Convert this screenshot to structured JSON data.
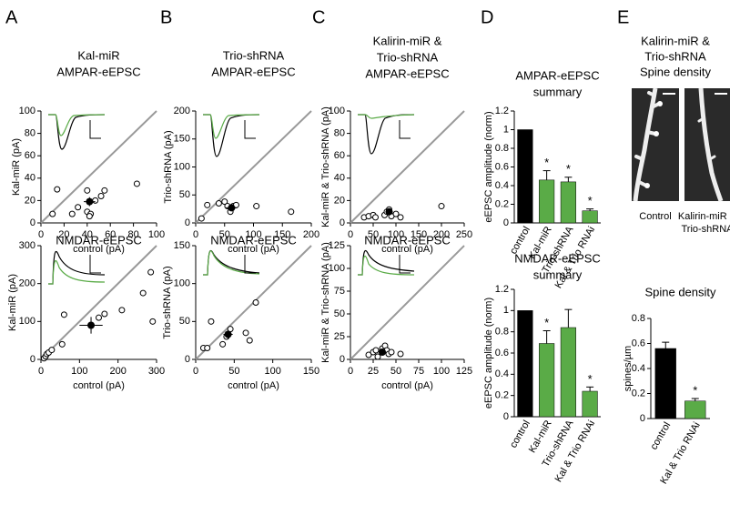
{
  "panel_labels": [
    "A",
    "B",
    "C",
    "D",
    "E"
  ],
  "image_panel": {
    "title": [
      "Kalirin-miR &",
      "Trio-shRNA",
      "Spine density"
    ],
    "labels": [
      [
        "Control"
      ],
      [
        "Kalirin-miR &",
        "Trio-shRNA"
      ]
    ]
  },
  "chart_data": [
    {
      "type": "scatter",
      "title": [
        "Kal-miR",
        "AMPAR-eEPSC"
      ],
      "x_label": "control (pA)",
      "y_label": "Kal-miR (pA)",
      "xlim": [
        0,
        100
      ],
      "xticks": [
        0,
        20,
        40,
        60,
        80,
        100
      ],
      "ylim": [
        0,
        100
      ],
      "yticks": [
        0,
        20,
        40,
        60,
        80,
        100
      ],
      "x": [
        10,
        14,
        27,
        32,
        40,
        40,
        43,
        42,
        47,
        52,
        55,
        83
      ],
      "y": [
        8,
        30,
        8,
        14,
        29,
        10,
        8,
        6,
        20,
        24,
        29,
        35
      ],
      "mean": {
        "x": 42,
        "y": 19,
        "xerr": 5,
        "yerr": 4
      }
    },
    {
      "type": "scatter",
      "title": [
        "NMDAR-eEPSC"
      ],
      "x_label": "control (pA)",
      "y_label": "Kal-miR (pA)",
      "xlim": [
        0,
        300
      ],
      "xticks": [
        0,
        100,
        200,
        300
      ],
      "ylim": [
        0,
        300
      ],
      "yticks": [
        0,
        100,
        200,
        300
      ],
      "x": [
        8,
        12,
        15,
        20,
        28,
        55,
        60,
        150,
        165,
        210,
        265,
        285,
        290
      ],
      "y": [
        3,
        8,
        14,
        18,
        25,
        40,
        118,
        110,
        120,
        130,
        175,
        230,
        100
      ],
      "mean": {
        "x": 130,
        "y": 90,
        "xerr": 30,
        "yerr": 22
      }
    },
    {
      "type": "scatter",
      "title": [
        "Trio-shRNA",
        "AMPAR-eEPSC"
      ],
      "x_label": "control (pA)",
      "y_label": "Trio-shRNA (pA)",
      "xlim": [
        0,
        200
      ],
      "xticks": [
        0,
        50,
        100,
        150,
        200
      ],
      "ylim": [
        0,
        200
      ],
      "yticks": [
        0,
        50,
        100,
        150,
        200
      ],
      "x": [
        10,
        20,
        40,
        50,
        55,
        60,
        65,
        70,
        105,
        165
      ],
      "y": [
        8,
        32,
        35,
        38,
        30,
        20,
        30,
        32,
        30,
        20
      ],
      "mean": {
        "x": 62,
        "y": 27,
        "xerr": 10,
        "yerr": 5
      }
    },
    {
      "type": "scatter",
      "title": [
        "NMDAR-eEPSC"
      ],
      "x_label": "control (pA)",
      "y_label": "Trio-shRNA (pA)",
      "xlim": [
        0,
        150
      ],
      "xticks": [
        0,
        50,
        100,
        150
      ],
      "ylim": [
        0,
        150
      ],
      "yticks": [
        0,
        50,
        100,
        150
      ],
      "x": [
        10,
        15,
        20,
        35,
        40,
        45,
        65,
        70,
        78
      ],
      "y": [
        15,
        15,
        50,
        20,
        30,
        40,
        35,
        25,
        75
      ],
      "mean": {
        "x": 42,
        "y": 33,
        "xerr": 6,
        "yerr": 6
      }
    },
    {
      "type": "scatter",
      "title": [
        "Kalirin-miR &",
        "Trio-shRNA",
        "AMPAR-eEPSC"
      ],
      "x_label": "control (pA)",
      "y_label": "Kal-miR & Trio-shRNA (pA)",
      "xlim": [
        0,
        250
      ],
      "xticks": [
        0,
        50,
        100,
        150,
        200,
        250
      ],
      "ylim": [
        0,
        100
      ],
      "yticks": [
        0,
        20,
        40,
        60,
        80,
        100
      ],
      "x": [
        30,
        40,
        50,
        55,
        75,
        80,
        85,
        90,
        100,
        110,
        200
      ],
      "y": [
        5,
        6,
        7,
        5,
        7,
        10,
        12,
        6,
        8,
        5,
        15
      ],
      "mean": {
        "x": 85,
        "y": 10,
        "xerr": 8,
        "yerr": 2
      }
    },
    {
      "type": "scatter",
      "title": [
        "NMDAR-eEPSC"
      ],
      "x_label": "control (pA)",
      "y_label": "Kal-miR & Trio-shRNA (pA)",
      "xlim": [
        0,
        125
      ],
      "xticks": [
        0,
        25,
        50,
        75,
        100,
        125
      ],
      "ylim": [
        0,
        125
      ],
      "yticks": [
        0,
        25,
        50,
        75,
        100,
        125
      ],
      "x": [
        20,
        25,
        28,
        30,
        35,
        38,
        40,
        42,
        45,
        55
      ],
      "y": [
        5,
        8,
        10,
        3,
        12,
        15,
        10,
        6,
        8,
        6
      ],
      "mean": {
        "x": 35,
        "y": 8,
        "xerr": 4,
        "yerr": 3
      }
    },
    {
      "type": "bar",
      "title": [
        "AMPAR-eEPSC",
        "summary"
      ],
      "y_label": "eEPSC amplitude (norm)",
      "categories": [
        "control",
        "Kal-miR",
        "Trio-shRNA",
        "Kal & Trio RNAi"
      ],
      "values": [
        1,
        0.46,
        0.44,
        0.13
      ],
      "errors": [
        null,
        0.1,
        0.05,
        0.02
      ],
      "colors": [
        "#000000",
        "#5aab47",
        "#5aab47",
        "#5aab47"
      ],
      "significance": [
        null,
        "*",
        "*",
        "*"
      ],
      "ylim": [
        0,
        1.2
      ],
      "yticks": [
        0,
        0.2,
        0.4,
        0.6,
        0.8,
        1,
        1.2
      ]
    },
    {
      "type": "bar",
      "title": [
        "NMDAR-eEPSC",
        "summary"
      ],
      "y_label": "eEPSC amplitude (norm)",
      "categories": [
        "control",
        "Kal-miR",
        "Trio-shRNA",
        "Kal & Trio RNAi"
      ],
      "values": [
        1,
        0.69,
        0.84,
        0.24
      ],
      "errors": [
        null,
        0.12,
        0.17,
        0.04
      ],
      "colors": [
        "#000000",
        "#5aab47",
        "#5aab47",
        "#5aab47"
      ],
      "significance": [
        null,
        "*",
        null,
        "*"
      ],
      "ylim": [
        0,
        1.2
      ],
      "yticks": [
        0,
        0.2,
        0.4,
        0.6,
        0.8,
        1,
        1.2
      ]
    },
    {
      "type": "bar",
      "title": [
        "Spine density"
      ],
      "y_label": "spines/µm",
      "categories": [
        "control",
        "Kal & Trio RNAi"
      ],
      "values": [
        0.56,
        0.14
      ],
      "errors": [
        0.05,
        0.02
      ],
      "colors": [
        "#000000",
        "#5aab47"
      ],
      "significance": [
        null,
        "*"
      ],
      "ylim": [
        0,
        0.8
      ],
      "yticks": [
        0,
        0.2,
        0.4,
        0.6,
        0.8
      ]
    }
  ]
}
